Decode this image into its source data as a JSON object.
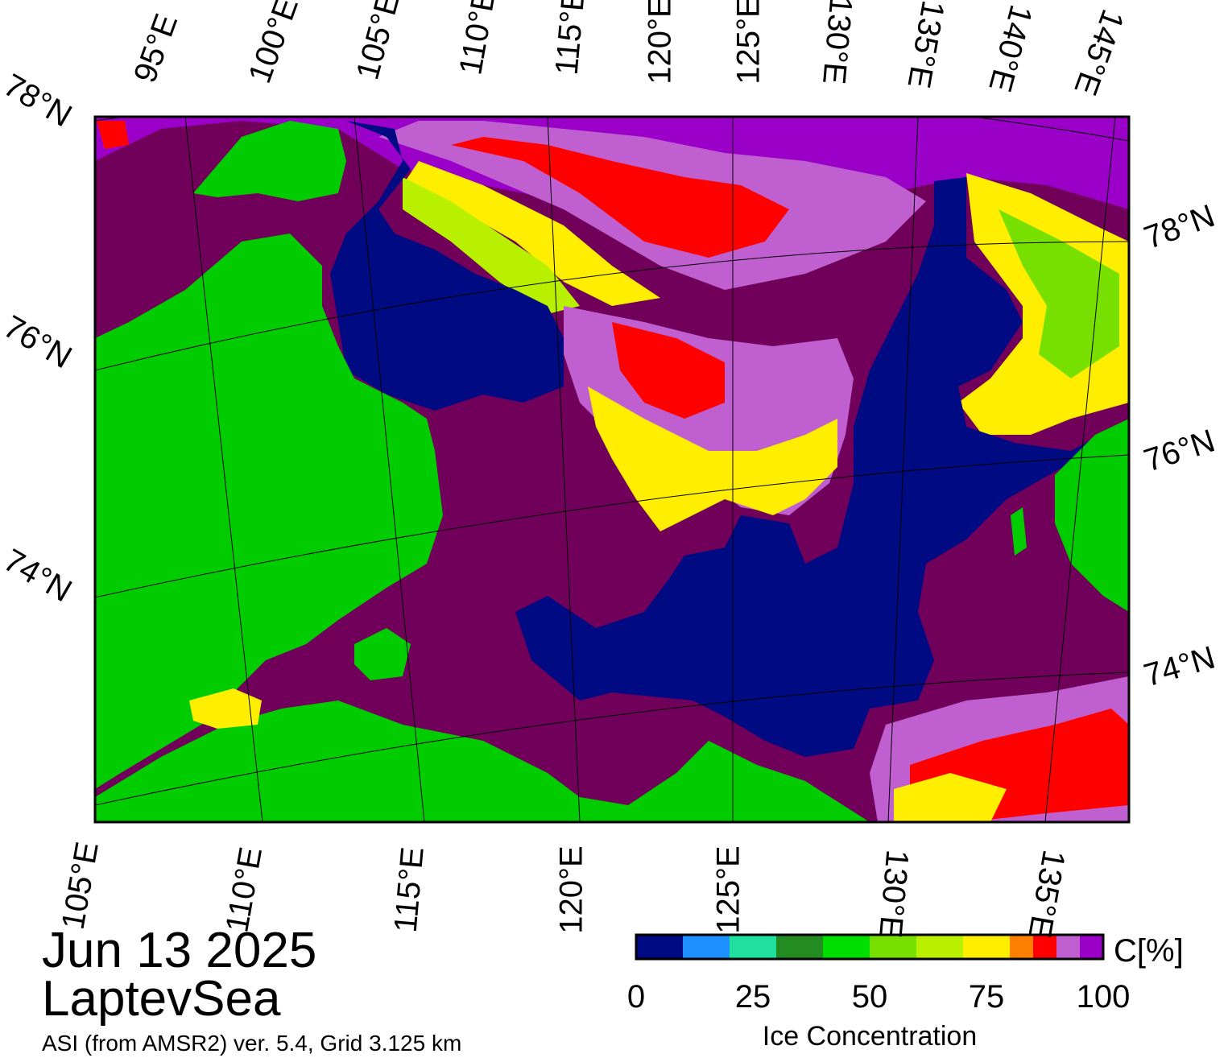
{
  "map": {
    "title_date": "Jun 13 2025",
    "title_region": "LaptevSea",
    "source_note": "ASI (from AMSR2) ver. 5.4,  Grid 3.125 km",
    "colors": {
      "open_water": "#000a82",
      "land": "#00cc00",
      "coast_land_gray": "#808080",
      "high_ice": "#70005a",
      "ice_90": "#9b00c8",
      "ice_85": "#c060d0",
      "ice_80": "#ff0000",
      "ice_70": "#ffee00",
      "ice_60": "#b8f000",
      "ice_50": "#78e000",
      "ice_40": "#00dd00"
    },
    "top_lon_labels": [
      "95°E",
      "100°E",
      "105°E",
      "110°E",
      "115°E",
      "120°E",
      "125°E",
      "130°E",
      "135°E",
      "140°E",
      "145°E"
    ],
    "bottom_lon_labels": [
      "105°E",
      "110°E",
      "115°E",
      "120°E",
      "125°E",
      "130°E",
      "135°E"
    ],
    "left_lat_labels": [
      "78°N",
      "76°N",
      "74°N"
    ],
    "right_lat_labels": [
      "78°N",
      "76°N",
      "74°N"
    ]
  },
  "colorbar": {
    "unit": "C[%]",
    "title": "Ice Concentration",
    "tick_labels": [
      "0",
      "25",
      "50",
      "75",
      "100"
    ],
    "ticks": [
      0,
      25,
      50,
      75,
      100
    ],
    "range": [
      0,
      100
    ],
    "colors": [
      "#000a82",
      "#1e90ff",
      "#20e0a0",
      "#228b22",
      "#00dd00",
      "#78e000",
      "#b8f000",
      "#ffee00",
      "#ff8000",
      "#ff0000",
      "#c060d0",
      "#9b00c8"
    ],
    "bounds": [
      0,
      10,
      20,
      30,
      40,
      50,
      60,
      70,
      80,
      85,
      90,
      95,
      100
    ]
  }
}
